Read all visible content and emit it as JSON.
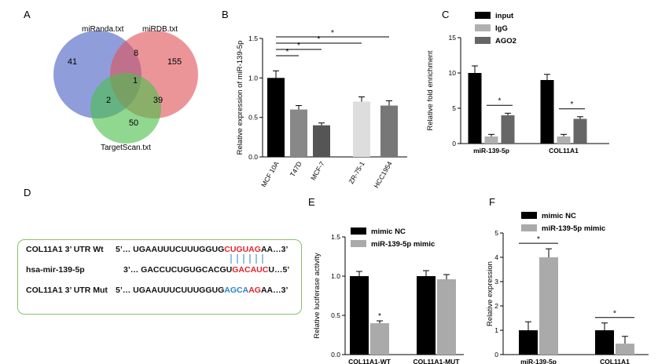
{
  "panels": {
    "A": "A",
    "B": "B",
    "C": "C",
    "D": "D",
    "E": "E",
    "F": "F"
  },
  "venn": {
    "sets": [
      {
        "name": "miRanda.txt",
        "color": "#4a62c4"
      },
      {
        "name": "miRDB.txt",
        "color": "#e0545a"
      },
      {
        "name": "TargetScan.txt",
        "color": "#4cbf4c"
      }
    ],
    "counts": {
      "only_miranda": "41",
      "only_mirdb": "155",
      "miranda_mirdb": "8",
      "all_three": "1",
      "miranda_targetscan": "2",
      "mirdb_targetscan": "39",
      "only_targetscan": "50"
    }
  },
  "sequence": {
    "rows": [
      {
        "label": "COL11A1 3’ UTR Wt",
        "prefix": "5’… UGAAUUUCUUUGGUG",
        "highlight": "CUGUAG",
        "suffix": "AA…3’"
      },
      {
        "label": "hsa-mir-139-5p",
        "prefix": "3’… GACCUCUGUGCACGU",
        "highlight": "GACAUC",
        "suffix": "U…5’"
      },
      {
        "label": "COL11A1 3’ UTR Mut",
        "prefix": "5’… UGAAUUUCUUUGGUG",
        "highlight_parts": [
          "AGCA",
          "AG"
        ],
        "suffix": "AA…3’"
      }
    ]
  },
  "chart_data": [
    {
      "panel": "B",
      "type": "bar",
      "categories": [
        "MCF 10A",
        "T47D",
        "MCF-7",
        "ZR-75-1",
        "HCC1954"
      ],
      "values": [
        1.0,
        0.6,
        0.4,
        0.7,
        0.65
      ],
      "errors": [
        0.09,
        0.05,
        0.03,
        0.06,
        0.06
      ],
      "colors": [
        "#000000",
        "#888888",
        "#555555",
        "#dddddd",
        "#777777"
      ],
      "ylabel": "Relative expression of miR-139-5p",
      "ylim": [
        0,
        1.5
      ],
      "yticks": [
        "0.0",
        "0.5",
        "1.0",
        "1.5"
      ],
      "significance": [
        "*",
        "*",
        "*",
        "*"
      ]
    },
    {
      "panel": "C",
      "type": "bar",
      "categories": [
        "miR-139-5p",
        "COL11A1"
      ],
      "series": [
        {
          "name": "input",
          "color": "#000000",
          "values": [
            10.0,
            9.0
          ],
          "errors": [
            1.0,
            0.8
          ]
        },
        {
          "name": "IgG",
          "color": "#b0b0b0",
          "values": [
            1.0,
            1.0
          ],
          "errors": [
            0.3,
            0.3
          ]
        },
        {
          "name": "AGO2",
          "color": "#666666",
          "values": [
            4.0,
            3.5
          ],
          "errors": [
            0.3,
            0.3
          ]
        }
      ],
      "ylabel": "Relative fold enrichment",
      "ylim": [
        0,
        15
      ],
      "yticks": [
        "0",
        "5",
        "10",
        "15"
      ],
      "significance": [
        "*",
        "*"
      ]
    },
    {
      "panel": "E",
      "type": "bar",
      "categories": [
        "COL11A1-WT",
        "COL11A1-MUT"
      ],
      "series": [
        {
          "name": "mimic NC",
          "color": "#000000",
          "values": [
            1.0,
            1.0
          ],
          "errors": [
            0.06,
            0.07
          ]
        },
        {
          "name": "miR-139-5p mimic",
          "color": "#aaaaaa",
          "values": [
            0.4,
            0.96
          ],
          "errors": [
            0.03,
            0.06
          ]
        }
      ],
      "ylabel": "Relative luciferase activity",
      "ylim": [
        0,
        1.5
      ],
      "yticks": [
        "0.0",
        "0.5",
        "1.0",
        "1.5"
      ],
      "significance": [
        "*"
      ]
    },
    {
      "panel": "F",
      "type": "bar",
      "categories": [
        "miR-139-5p",
        "COL11A1"
      ],
      "series": [
        {
          "name": "mimic NC",
          "color": "#000000",
          "values": [
            1.0,
            1.0
          ],
          "errors": [
            0.35,
            0.3
          ]
        },
        {
          "name": "miR-139-5p mimic",
          "color": "#aaaaaa",
          "values": [
            4.0,
            0.45
          ],
          "errors": [
            0.35,
            0.3
          ]
        }
      ],
      "ylabel": "Relative expression",
      "ylim": [
        0,
        5
      ],
      "yticks": [
        "0",
        "1",
        "2",
        "3",
        "4",
        "5"
      ],
      "significance": [
        "*",
        "*"
      ]
    }
  ]
}
